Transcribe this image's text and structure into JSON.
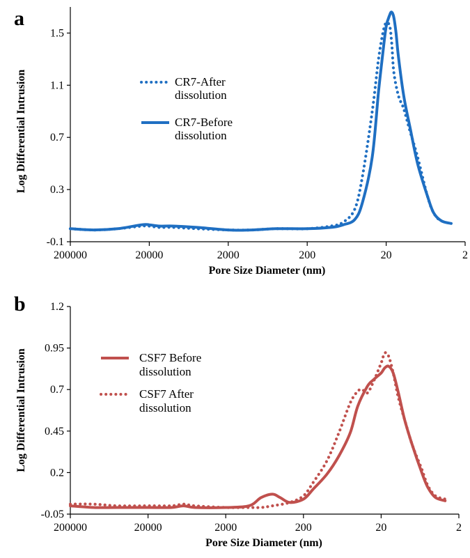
{
  "chart_data": [
    {
      "type": "line",
      "panel": "a",
      "xlabel": "Pore Size Diameter (nm)",
      "ylabel": "Log Differential Intrusion",
      "xscale": "log-reversed",
      "xlim": [
        200000,
        2
      ],
      "ylim": [
        -0.1,
        1.7
      ],
      "yticks": [
        "-0.1",
        "0.3",
        "0.7",
        "1.1",
        "1.5"
      ],
      "yticks_values": [
        -0.1,
        0.3,
        0.7,
        1.1,
        1.5
      ],
      "xticks": [
        "200000",
        "20000",
        "2000",
        "200",
        "20",
        "2"
      ],
      "xticks_values": [
        200000,
        20000,
        2000,
        200,
        20,
        2
      ],
      "legend_position": "upper-left",
      "series": [
        {
          "name": "CR7-After dissolution",
          "style": "dotted",
          "color": "#1f6fc2",
          "x": [
            200000,
            100000,
            50000,
            25000,
            20000,
            15000,
            10000,
            5000,
            2000,
            1000,
            500,
            200,
            100,
            70,
            50,
            40,
            30,
            25,
            22,
            20,
            18,
            17,
            16,
            14,
            12,
            10,
            8,
            6,
            5,
            4
          ],
          "y": [
            0.0,
            -0.01,
            0.0,
            0.02,
            0.02,
            0.01,
            0.01,
            0.0,
            -0.01,
            -0.01,
            0.0,
            0.0,
            0.02,
            0.05,
            0.15,
            0.4,
            0.9,
            1.3,
            1.5,
            1.58,
            1.55,
            1.42,
            1.2,
            1.02,
            0.92,
            0.75,
            0.55,
            0.25,
            0.12,
            0.05
          ]
        },
        {
          "name": "CR7-Before dissolution",
          "style": "solid",
          "color": "#1f6fc2",
          "x": [
            200000,
            100000,
            50000,
            25000,
            20000,
            15000,
            10000,
            5000,
            2000,
            1000,
            500,
            200,
            100,
            70,
            50,
            40,
            30,
            25,
            22,
            20,
            18,
            17,
            16,
            15,
            14,
            12,
            10,
            8,
            6,
            5,
            4,
            3
          ],
          "y": [
            0.0,
            -0.01,
            0.0,
            0.03,
            0.03,
            0.02,
            0.02,
            0.01,
            -0.01,
            -0.01,
            0.0,
            0.0,
            0.01,
            0.03,
            0.07,
            0.2,
            0.55,
            1.05,
            1.35,
            1.55,
            1.64,
            1.66,
            1.62,
            1.5,
            1.32,
            1.02,
            0.78,
            0.5,
            0.25,
            0.12,
            0.06,
            0.04
          ]
        }
      ]
    },
    {
      "type": "line",
      "panel": "b",
      "xlabel": "Pore Size Diameter (nm)",
      "ylabel": "Log Differential Intrusion",
      "xscale": "log-reversed",
      "xlim": [
        200000,
        2
      ],
      "ylim": [
        -0.05,
        1.2
      ],
      "yticks": [
        "-0.05",
        "0.2",
        "0.45",
        "0.7",
        "0.95",
        "1.2"
      ],
      "yticks_values": [
        -0.05,
        0.2,
        0.45,
        0.7,
        0.95,
        1.2
      ],
      "xticks": [
        "200000",
        "20000",
        "2000",
        "200",
        "20",
        "2"
      ],
      "xticks_values": [
        200000,
        20000,
        2000,
        200,
        20,
        2
      ],
      "legend_position": "upper-left",
      "series": [
        {
          "name": "CSF7 Before dissolution",
          "style": "solid",
          "color": "#c0504d",
          "x": [
            200000,
            100000,
            50000,
            20000,
            10000,
            7000,
            5000,
            2000,
            1000,
            700,
            500,
            400,
            300,
            200,
            150,
            100,
            70,
            50,
            40,
            30,
            25,
            20,
            18,
            16,
            14,
            12,
            10,
            8,
            6,
            5,
            4,
            3
          ],
          "y": [
            0.0,
            -0.01,
            -0.01,
            -0.01,
            -0.01,
            0.0,
            -0.01,
            -0.01,
            0.0,
            0.05,
            0.07,
            0.05,
            0.02,
            0.04,
            0.1,
            0.19,
            0.3,
            0.44,
            0.6,
            0.72,
            0.76,
            0.8,
            0.83,
            0.84,
            0.8,
            0.68,
            0.52,
            0.37,
            0.2,
            0.11,
            0.05,
            0.03
          ]
        },
        {
          "name": "CSF7 After dissolution",
          "style": "dotted",
          "color": "#c0504d",
          "x": [
            200000,
            100000,
            50000,
            20000,
            10000,
            7000,
            5000,
            2000,
            1000,
            700,
            500,
            300,
            200,
            150,
            100,
            70,
            50,
            40,
            35,
            30,
            25,
            20,
            18,
            16,
            14,
            12,
            10,
            8,
            6,
            5,
            4,
            3
          ],
          "y": [
            0.01,
            0.01,
            0.0,
            0.0,
            0.0,
            0.01,
            0.0,
            -0.01,
            -0.01,
            -0.01,
            0.0,
            0.02,
            0.06,
            0.14,
            0.27,
            0.44,
            0.62,
            0.69,
            0.7,
            0.68,
            0.75,
            0.86,
            0.92,
            0.9,
            0.8,
            0.65,
            0.52,
            0.37,
            0.22,
            0.12,
            0.06,
            0.04
          ]
        }
      ]
    }
  ]
}
